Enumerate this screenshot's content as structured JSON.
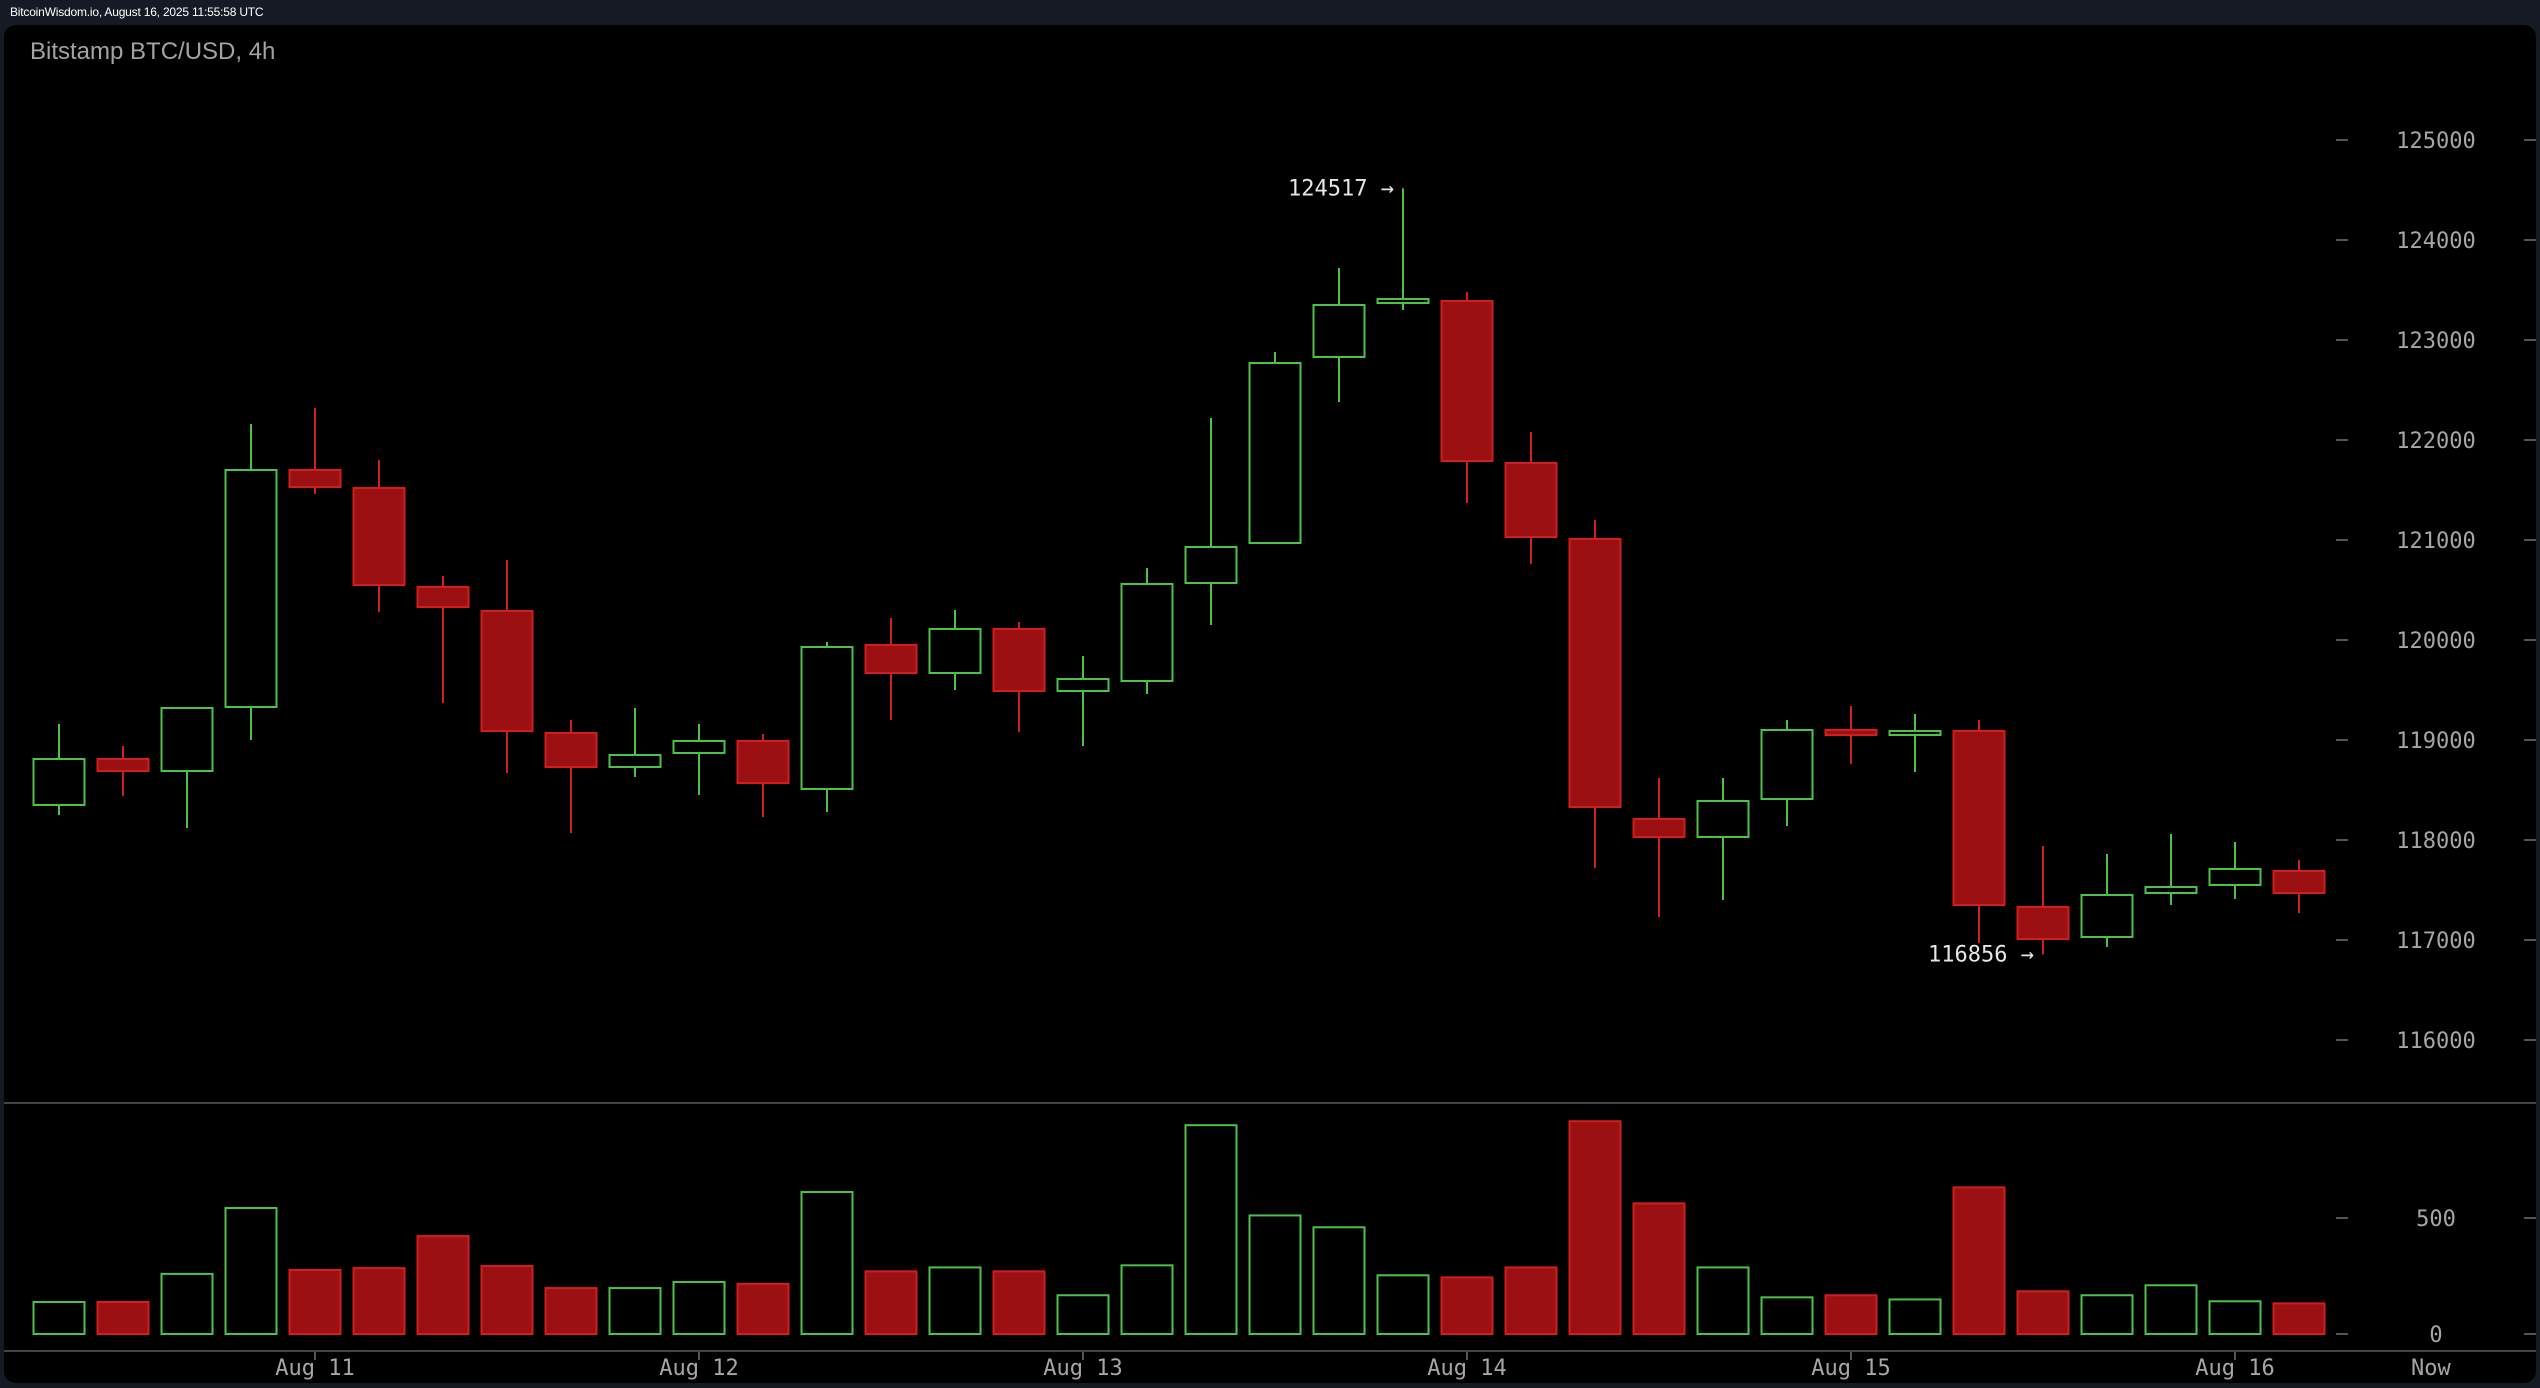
{
  "header": {
    "source_text": "BitcoinWisdom.io, August 16, 2025 11:55:58 UTC"
  },
  "chart": {
    "title": "Bitstamp BTC/USD, 4h"
  },
  "colors": {
    "background_outer": "#161a25",
    "panel_background": "#000000",
    "up": "#4cc24a",
    "down_border": "#d41e1e",
    "down_fill": "#9b1013",
    "axis_text": "#a6a6a6",
    "grid_line": "#444444"
  },
  "chart_data": {
    "type": "candlestick",
    "title": "Bitstamp BTC/USD, 4h",
    "xlabel": "",
    "ylabel": "",
    "price_axis": {
      "ticks": [
        116000,
        117000,
        118000,
        119000,
        120000,
        121000,
        122000,
        123000,
        124000,
        125000
      ],
      "range": [
        115400,
        125540
      ]
    },
    "volume_axis": {
      "ticks": [
        0,
        500
      ]
    },
    "x_ticks": [
      {
        "label": "Aug 11",
        "index": 4.0
      },
      {
        "label": "Aug 12",
        "index": 10.0
      },
      {
        "label": "Aug 13",
        "index": 16.0
      },
      {
        "label": "Aug 14",
        "index": 22.0
      },
      {
        "label": "Aug 15",
        "index": 28.0
      },
      {
        "label": "Aug 16",
        "index": 34.0
      },
      {
        "label": "Now",
        "index": 37.06
      }
    ],
    "annotations": [
      {
        "label": "124517 →",
        "value": 124517,
        "index": 21,
        "kind": "high"
      },
      {
        "label": "116856 →",
        "value": 116856,
        "index": 31,
        "kind": "low"
      }
    ],
    "candles": [
      {
        "open": 118350,
        "high": 119160,
        "low": 118250,
        "close": 118810,
        "volume": 138
      },
      {
        "open": 118810,
        "high": 118940,
        "low": 118440,
        "close": 118690,
        "volume": 138
      },
      {
        "open": 118690,
        "high": 119320,
        "low": 118120,
        "close": 119320,
        "volume": 259
      },
      {
        "open": 119330,
        "high": 122160,
        "low": 119000,
        "close": 121700,
        "volume": 543
      },
      {
        "open": 121700,
        "high": 122320,
        "low": 121460,
        "close": 121530,
        "volume": 276
      },
      {
        "open": 121520,
        "high": 121800,
        "low": 120280,
        "close": 120550,
        "volume": 284
      },
      {
        "open": 120530,
        "high": 120640,
        "low": 119370,
        "close": 120330,
        "volume": 422
      },
      {
        "open": 120290,
        "high": 120800,
        "low": 118670,
        "close": 119090,
        "volume": 293
      },
      {
        "open": 119070,
        "high": 119200,
        "low": 118070,
        "close": 118730,
        "volume": 198
      },
      {
        "open": 118730,
        "high": 119320,
        "low": 118630,
        "close": 118850,
        "volume": 198
      },
      {
        "open": 118870,
        "high": 119160,
        "low": 118450,
        "close": 118990,
        "volume": 224
      },
      {
        "open": 118990,
        "high": 119060,
        "low": 118230,
        "close": 118570,
        "volume": 216
      },
      {
        "open": 118510,
        "high": 119980,
        "low": 118280,
        "close": 119930,
        "volume": 612
      },
      {
        "open": 119950,
        "high": 120220,
        "low": 119200,
        "close": 119670,
        "volume": 270
      },
      {
        "open": 119670,
        "high": 120300,
        "low": 119500,
        "close": 120110,
        "volume": 287
      },
      {
        "open": 120110,
        "high": 120180,
        "low": 119080,
        "close": 119490,
        "volume": 270
      },
      {
        "open": 119490,
        "high": 119840,
        "low": 118940,
        "close": 119610,
        "volume": 167
      },
      {
        "open": 119590,
        "high": 120720,
        "low": 119460,
        "close": 120560,
        "volume": 296
      },
      {
        "open": 120570,
        "high": 122220,
        "low": 120150,
        "close": 120930,
        "volume": 900
      },
      {
        "open": 120970,
        "high": 122880,
        "low": 120970,
        "close": 122770,
        "volume": 511
      },
      {
        "open": 122830,
        "high": 123720,
        "low": 122380,
        "close": 123350,
        "volume": 460
      },
      {
        "open": 123370,
        "high": 124517,
        "low": 123300,
        "close": 123410,
        "volume": 253
      },
      {
        "open": 123390,
        "high": 123480,
        "low": 121370,
        "close": 121790,
        "volume": 244
      },
      {
        "open": 121770,
        "high": 122080,
        "low": 120760,
        "close": 121030,
        "volume": 287
      },
      {
        "open": 121010,
        "high": 121200,
        "low": 117720,
        "close": 118330,
        "volume": 917
      },
      {
        "open": 118210,
        "high": 118620,
        "low": 117230,
        "close": 118030,
        "volume": 563
      },
      {
        "open": 118030,
        "high": 118620,
        "low": 117400,
        "close": 118390,
        "volume": 287
      },
      {
        "open": 118410,
        "high": 119200,
        "low": 118140,
        "close": 119100,
        "volume": 158
      },
      {
        "open": 119100,
        "high": 119340,
        "low": 118760,
        "close": 119050,
        "volume": 167
      },
      {
        "open": 119050,
        "high": 119260,
        "low": 118680,
        "close": 119090,
        "volume": 149
      },
      {
        "open": 119090,
        "high": 119200,
        "low": 116970,
        "close": 117350,
        "volume": 632
      },
      {
        "open": 117330,
        "high": 117940,
        "low": 116856,
        "close": 117010,
        "volume": 184
      },
      {
        "open": 117030,
        "high": 117860,
        "low": 116930,
        "close": 117450,
        "volume": 167
      },
      {
        "open": 117470,
        "high": 118060,
        "low": 117350,
        "close": 117530,
        "volume": 210
      },
      {
        "open": 117550,
        "high": 117980,
        "low": 117410,
        "close": 117710,
        "volume": 141
      },
      {
        "open": 117690,
        "high": 117800,
        "low": 117270,
        "close": 117470,
        "volume": 132
      }
    ],
    "legend": [],
    "grid": false
  }
}
